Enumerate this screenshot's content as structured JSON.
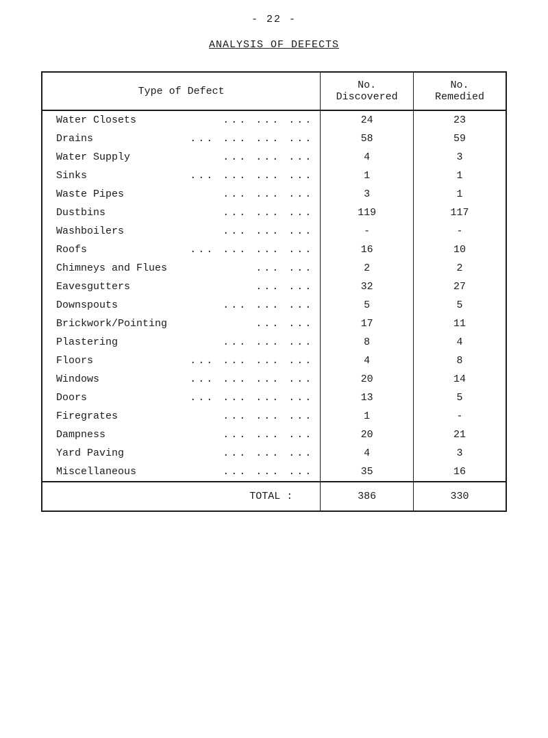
{
  "page_number": "- 22 -",
  "title": "ANALYSIS OF DEFECTS",
  "table": {
    "headers": {
      "col1": "Type of Defect",
      "col2_line1": "No.",
      "col2_line2": "Discovered",
      "col3_line1": "No.",
      "col3_line2": "Remedied"
    },
    "rows": [
      {
        "label": "Water Closets",
        "dots": "...  ...  ...",
        "discovered": "24",
        "remedied": "23"
      },
      {
        "label": "Drains",
        "dots": "...  ...  ...  ...",
        "discovered": "58",
        "remedied": "59"
      },
      {
        "label": "Water Supply",
        "dots": "...  ...  ...",
        "discovered": "4",
        "remedied": "3"
      },
      {
        "label": "Sinks",
        "dots": "...  ...  ...  ...",
        "discovered": "1",
        "remedied": "1"
      },
      {
        "label": "Waste Pipes",
        "dots": "...  ...  ...",
        "discovered": "3",
        "remedied": "1"
      },
      {
        "label": "Dustbins",
        "dots": "...  ...  ...",
        "discovered": "119",
        "remedied": "117"
      },
      {
        "label": "Washboilers",
        "dots": "...  ...  ...",
        "discovered": "-",
        "remedied": "-"
      },
      {
        "label": "Roofs",
        "dots": "...  ...  ...  ...",
        "discovered": "16",
        "remedied": "10"
      },
      {
        "label": "Chimneys and Flues",
        "dots": "...  ...",
        "discovered": "2",
        "remedied": "2"
      },
      {
        "label": "Eavesgutters",
        "dots": "...  ...",
        "discovered": "32",
        "remedied": "27"
      },
      {
        "label": "Downspouts",
        "dots": "...  ...  ...",
        "discovered": "5",
        "remedied": "5"
      },
      {
        "label": "Brickwork/Pointing",
        "dots": "...  ...",
        "discovered": "17",
        "remedied": "11"
      },
      {
        "label": "Plastering",
        "dots": "...  ...  ...",
        "discovered": "8",
        "remedied": "4"
      },
      {
        "label": "Floors",
        "dots": "...  ...  ...  ...",
        "discovered": "4",
        "remedied": "8"
      },
      {
        "label": "Windows",
        "dots": "...  ...  ...  ...",
        "discovered": "20",
        "remedied": "14"
      },
      {
        "label": "Doors",
        "dots": "...  ...  ...  ...",
        "discovered": "13",
        "remedied": "5"
      },
      {
        "label": "Firegrates",
        "dots": "...  ...  ...",
        "discovered": "1",
        "remedied": "-"
      },
      {
        "label": "Dampness",
        "dots": "...  ...  ...",
        "discovered": "20",
        "remedied": "21"
      },
      {
        "label": "Yard Paving",
        "dots": "...  ...  ...",
        "discovered": "4",
        "remedied": "3"
      },
      {
        "label": "Miscellaneous",
        "dots": "...  ...  ...",
        "discovered": "35",
        "remedied": "16"
      }
    ],
    "total": {
      "label": "TOTAL :",
      "discovered": "386",
      "remedied": "330"
    }
  },
  "styling": {
    "font_family": "Courier New",
    "font_size_pt": 12,
    "text_color": "#1a1a1a",
    "background_color": "#ffffff",
    "border_color": "#1a1a1a",
    "border_width_outer": 2,
    "border_width_inner": 1,
    "col_widths_pct": [
      60,
      20,
      20
    ]
  }
}
